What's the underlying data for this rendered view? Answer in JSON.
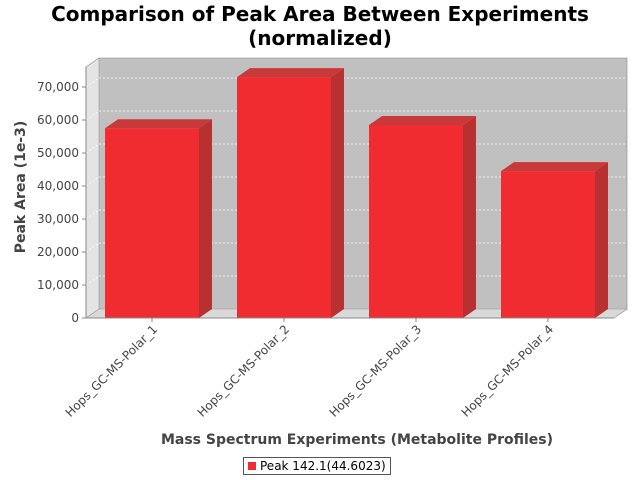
{
  "chart_data": {
    "type": "bar",
    "title_lines": [
      "Comparison of Peak Area Between Experiments",
      "(normalized)"
    ],
    "xlabel": "Mass Spectrum Experiments (Metabolite Profiles)",
    "ylabel": "Peak Area (1e-3)",
    "categories": [
      "Hops_GC-MS-Polar_1",
      "Hops_GC-MS-Polar_2",
      "Hops_GC-MS-Polar_3",
      "Hops_GC-MS-Polar_4"
    ],
    "series": [
      {
        "name": "Peak 142.1(44.6023)",
        "values": [
          57500,
          73000,
          58500,
          44500
        ],
        "color": "#f02c30"
      }
    ],
    "yticks": [
      0,
      10000,
      20000,
      30000,
      40000,
      50000,
      60000,
      70000
    ],
    "ytick_labels": [
      "0",
      "10,000",
      "20,000",
      "30,000",
      "40,000",
      "50,000",
      "60,000",
      "70,000"
    ],
    "ylim": [
      0,
      70000
    ],
    "grid": true,
    "legend_position": "bottom-center",
    "style": "3d-bar",
    "colors": {
      "plot_bg": "#c0c0c0",
      "floor": "#d8d8d8",
      "wall": "#e4e4e4",
      "bar_side": "#b83030",
      "bar_top": "#c83a3a"
    }
  }
}
